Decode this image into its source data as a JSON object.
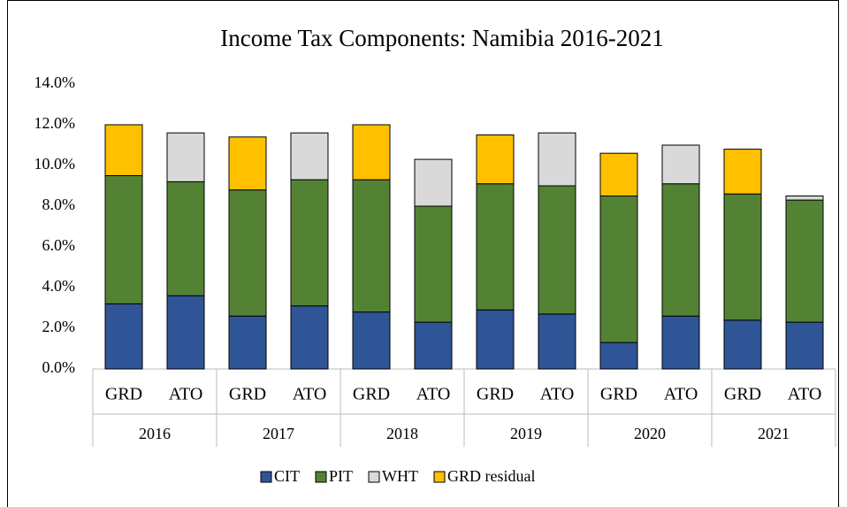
{
  "chart_data": {
    "type": "stacked_bar",
    "title": "Income Tax Components: Namibia 2016-2021",
    "categories": [
      "GRD",
      "ATO",
      "GRD",
      "ATO",
      "GRD",
      "ATO",
      "GRD",
      "ATO",
      "GRD",
      "ATO",
      "GRD",
      "ATO"
    ],
    "groups": [
      "2016",
      "2017",
      "2018",
      "2019",
      "2020",
      "2021"
    ],
    "series": [
      {
        "name": "CIT",
        "color": "#2f5597",
        "values": [
          3.2,
          3.6,
          2.6,
          3.1,
          2.8,
          2.3,
          2.9,
          2.7,
          1.3,
          2.6,
          2.4,
          2.3
        ]
      },
      {
        "name": "PIT",
        "color": "#548235",
        "values": [
          6.3,
          5.6,
          6.2,
          6.2,
          6.5,
          5.7,
          6.2,
          6.3,
          7.2,
          6.5,
          6.2,
          6.0
        ]
      },
      {
        "name": "WHT",
        "color": "#d9d9d9",
        "values": [
          null,
          2.4,
          null,
          2.3,
          null,
          2.3,
          null,
          2.6,
          null,
          1.9,
          null,
          0.2
        ]
      },
      {
        "name": "GRD residual",
        "color": "#ffc000",
        "values": [
          2.5,
          null,
          2.6,
          null,
          2.7,
          null,
          2.4,
          null,
          2.1,
          null,
          2.2,
          null
        ]
      }
    ],
    "ylim": [
      0,
      14
    ],
    "yticks": [
      {
        "value": 0,
        "label": "0.0%"
      },
      {
        "value": 2,
        "label": "2.0%"
      },
      {
        "value": 4,
        "label": "4.0%"
      },
      {
        "value": 6,
        "label": "6.0%"
      },
      {
        "value": 8,
        "label": "8.0%"
      },
      {
        "value": 10,
        "label": "10.0%"
      },
      {
        "value": 12,
        "label": "12.0%"
      },
      {
        "value": 14,
        "label": "14.0%"
      }
    ],
    "grid": false
  }
}
